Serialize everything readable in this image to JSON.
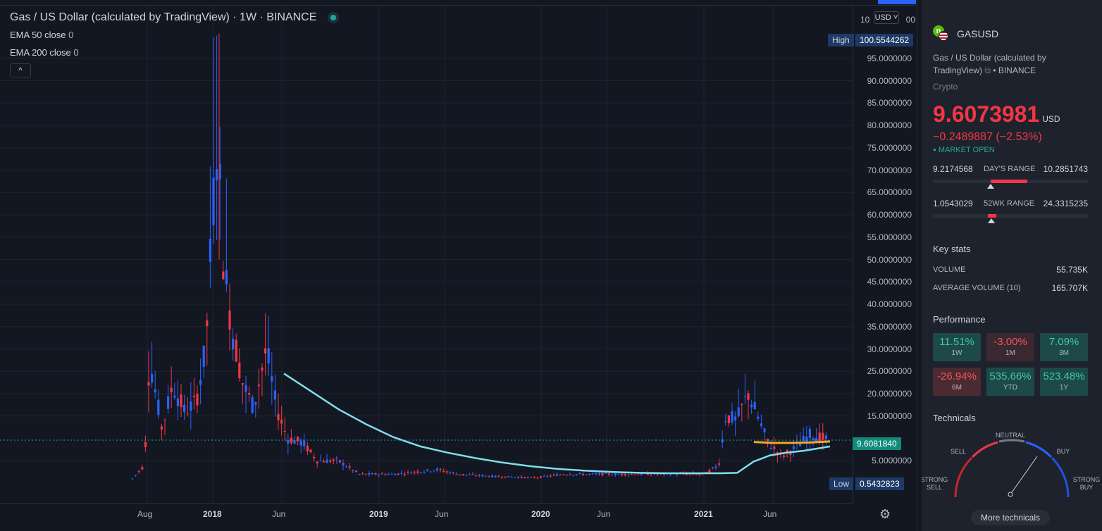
{
  "header": {
    "title": "Gas / US Dollar (calculated by TradingView) · 1W · BINANCE",
    "ema1": "EMA 50 close",
    "ema1_val": "0",
    "ema2": "EMA 200 close",
    "ema2_val": "0",
    "collapse_glyph": "^"
  },
  "price_axis": {
    "currency_button": "USD ˅",
    "top_partial_left": "10",
    "top_partial_right": "00",
    "ticks": [
      "95.0000000",
      "90.0000000",
      "85.0000000",
      "80.0000000",
      "75.0000000",
      "70.0000000",
      "65.0000000",
      "60.0000000",
      "55.0000000",
      "50.0000000",
      "45.0000000",
      "40.0000000",
      "35.0000000",
      "30.0000000",
      "25.0000000",
      "20.0000000",
      "15.0000000",
      "5.0000000"
    ],
    "high_label": "High",
    "high_value": "100.5544262",
    "low_label": "Low",
    "low_value": "0.5432823",
    "current_value": "9.6081840"
  },
  "time_axis": {
    "labels": [
      "Aug",
      "2018",
      "Jun",
      "2019",
      "Jun",
      "2020",
      "Jun",
      "2021",
      "Jun"
    ]
  },
  "side_panel": {
    "symbol": "GASUSD",
    "description": "Gas / US Dollar (calculated by TradingView)",
    "exchange": "• BINANCE",
    "category": "Crypto",
    "price": "9.6073981",
    "currency": "USD",
    "change": "−0.2489887 (−2.53%)",
    "market_status": "MARKET OPEN",
    "days_range": {
      "low": "9.2174568",
      "label": "DAY'S RANGE",
      "high": "10.2851743",
      "position": 0.37
    },
    "wk52_range": {
      "low": "1.0543029",
      "label": "52WK RANGE",
      "high": "24.3315235",
      "position": 0.38
    },
    "key_stats_title": "Key stats",
    "volume_label": "VOLUME",
    "volume_value": "55.735K",
    "avg_volume_label": "AVERAGE VOLUME (10)",
    "avg_volume_value": "165.707K",
    "performance_title": "Performance",
    "performance": [
      {
        "value": "11.51%",
        "label": "1W",
        "kind": "pos"
      },
      {
        "value": "-3.00%",
        "label": "1M",
        "kind": "neg-dark"
      },
      {
        "value": "7.09%",
        "label": "3M",
        "kind": "pos"
      },
      {
        "value": "-26.94%",
        "label": "6M",
        "kind": "neg"
      },
      {
        "value": "535.66%",
        "label": "YTD",
        "kind": "pos"
      },
      {
        "value": "523.48%",
        "label": "1Y",
        "kind": "pos"
      }
    ],
    "technicals_title": "Technicals",
    "gauge": {
      "neutral": "NEUTRAL",
      "sell": "SELL",
      "buy": "BUY",
      "strong_sell_1": "STRONG",
      "strong_sell_2": "SELL",
      "strong_buy_1": "STRONG",
      "strong_buy_2": "BUY"
    },
    "more_button": "More technicals"
  },
  "colors": {
    "up": "#2962ff",
    "down": "#f23645",
    "ema50": "#f5a623",
    "ema200": "#80deea",
    "accent": "#26a69a"
  },
  "chart_data": {
    "type": "candlestick",
    "title": "Gas / US Dollar (calculated by TradingView)",
    "interval": "1W",
    "ylim": [
      0,
      105
    ],
    "high": 100.5544262,
    "low": 0.5432823,
    "last": 9.608184,
    "ema200_points": [
      [
        0.0,
        24.5
      ],
      [
        0.05,
        20.5
      ],
      [
        0.1,
        16.5
      ],
      [
        0.15,
        13.2
      ],
      [
        0.2,
        10.3
      ],
      [
        0.25,
        8.2
      ],
      [
        0.3,
        6.8
      ],
      [
        0.35,
        5.6
      ],
      [
        0.4,
        4.6
      ],
      [
        0.45,
        3.8
      ],
      [
        0.5,
        3.2
      ],
      [
        0.55,
        2.8
      ],
      [
        0.6,
        2.5
      ],
      [
        0.65,
        2.3
      ],
      [
        0.7,
        2.2
      ],
      [
        0.75,
        2.2
      ],
      [
        0.8,
        2.2
      ],
      [
        0.83,
        2.3
      ],
      [
        0.86,
        4.8
      ],
      [
        0.89,
        6.2
      ],
      [
        0.92,
        6.8
      ],
      [
        0.95,
        7.2
      ],
      [
        0.98,
        7.8
      ],
      [
        1.0,
        8.2
      ]
    ],
    "ema50_points": [
      [
        0.0,
        9.2
      ],
      [
        0.25,
        9.0
      ],
      [
        0.5,
        9.0
      ],
      [
        0.75,
        9.1
      ],
      [
        1.0,
        9.3
      ]
    ]
  }
}
